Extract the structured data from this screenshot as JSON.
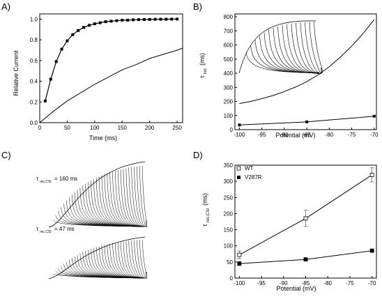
{
  "panels": {
    "A": {
      "letter": "A)"
    },
    "B": {
      "letter": "B)",
      "ylabel_main": "τ",
      "ylabel_sub": "rec",
      "ylabel_unit": "(ms)"
    },
    "C": {
      "letter": "C)",
      "label1_main": "τ",
      "label1_sub": "rec,CSI",
      "label1_val": "= 160 ms",
      "label2_main": "τ",
      "label2_sub": "rec,CSI",
      "label2_val": "= 47 ms"
    },
    "D": {
      "letter": "D)",
      "ylabel_main": "τ",
      "ylabel_sub": "rec,CSI",
      "ylabel_unit": "(ms)"
    }
  },
  "chart_data": [
    {
      "id": "A",
      "type": "line",
      "xlabel": "Time (ms)",
      "ylabel": "Relative Current",
      "xlim": [
        0,
        260
      ],
      "ylim": [
        0,
        1.05
      ],
      "xticks": [
        0,
        50,
        100,
        150,
        200,
        250
      ],
      "yticks": [
        0.0,
        0.2,
        0.4,
        0.6,
        0.8,
        1.0
      ],
      "ytick_labels": [
        "0.0",
        "0.2",
        "0.4",
        "0.6",
        "0.8",
        "1.0"
      ],
      "series": [
        {
          "style": "markers+line",
          "x": [
            10,
            20,
            30,
            40,
            50,
            60,
            70,
            80,
            90,
            100,
            110,
            120,
            130,
            140,
            150,
            160,
            170,
            180,
            190,
            200,
            210,
            220,
            230,
            240,
            250
          ],
          "y": [
            0.21,
            0.42,
            0.59,
            0.71,
            0.79,
            0.85,
            0.89,
            0.92,
            0.94,
            0.955,
            0.965,
            0.975,
            0.98,
            0.985,
            0.99,
            0.99,
            0.993,
            0.995,
            0.996,
            0.997,
            0.998,
            0.999,
            0.999,
            1.0,
            1.0
          ]
        },
        {
          "style": "line",
          "x": [
            0,
            25,
            50,
            75,
            100,
            125,
            150,
            175,
            200,
            225,
            250,
            260
          ],
          "y": [
            0,
            0.11,
            0.21,
            0.29,
            0.37,
            0.44,
            0.51,
            0.56,
            0.62,
            0.66,
            0.7,
            0.72
          ]
        }
      ]
    },
    {
      "id": "B",
      "type": "line",
      "xlabel": "Potential (mV)",
      "xlim": [
        -101,
        -69.5
      ],
      "ylim": [
        0,
        820
      ],
      "xticks": [
        -100,
        -95,
        -90,
        -85,
        -80,
        -75,
        -70
      ],
      "yticks": [
        0,
        100,
        200,
        300,
        400,
        500,
        600,
        700,
        800
      ],
      "series": [
        {
          "style": "line",
          "x": [
            -100,
            -97.5,
            -95,
            -92.5,
            -90,
            -87.5,
            -85,
            -82.5,
            -80,
            -77.5,
            -75,
            -72.5,
            -70
          ],
          "y": [
            185,
            200,
            220,
            242,
            270,
            302,
            340,
            388,
            445,
            515,
            592,
            680,
            780
          ]
        },
        {
          "style": "markers+line",
          "x": [
            -100,
            -85,
            -70
          ],
          "y": [
            33,
            55,
            95
          ]
        }
      ]
    },
    {
      "id": "D",
      "type": "line",
      "xlabel": "Potential (mV)",
      "xlim": [
        -101,
        -69
      ],
      "ylim": [
        0,
        350
      ],
      "xticks": [
        -100,
        -95,
        -90,
        -85,
        -80,
        -75,
        -70
      ],
      "yticks": [
        0,
        50,
        100,
        150,
        200,
        250,
        300,
        350
      ],
      "legend_position": "top-left",
      "series": [
        {
          "name": "WT",
          "marker": "open-square",
          "x": [
            -100,
            -85,
            -70
          ],
          "y": [
            72,
            185,
            320
          ],
          "err": [
            12,
            25,
            22
          ]
        },
        {
          "name": "V287R",
          "marker": "filled-square",
          "x": [
            -100,
            -85,
            -70
          ],
          "y": [
            45,
            58,
            85
          ],
          "err": [
            6,
            4,
            4
          ]
        }
      ]
    }
  ]
}
